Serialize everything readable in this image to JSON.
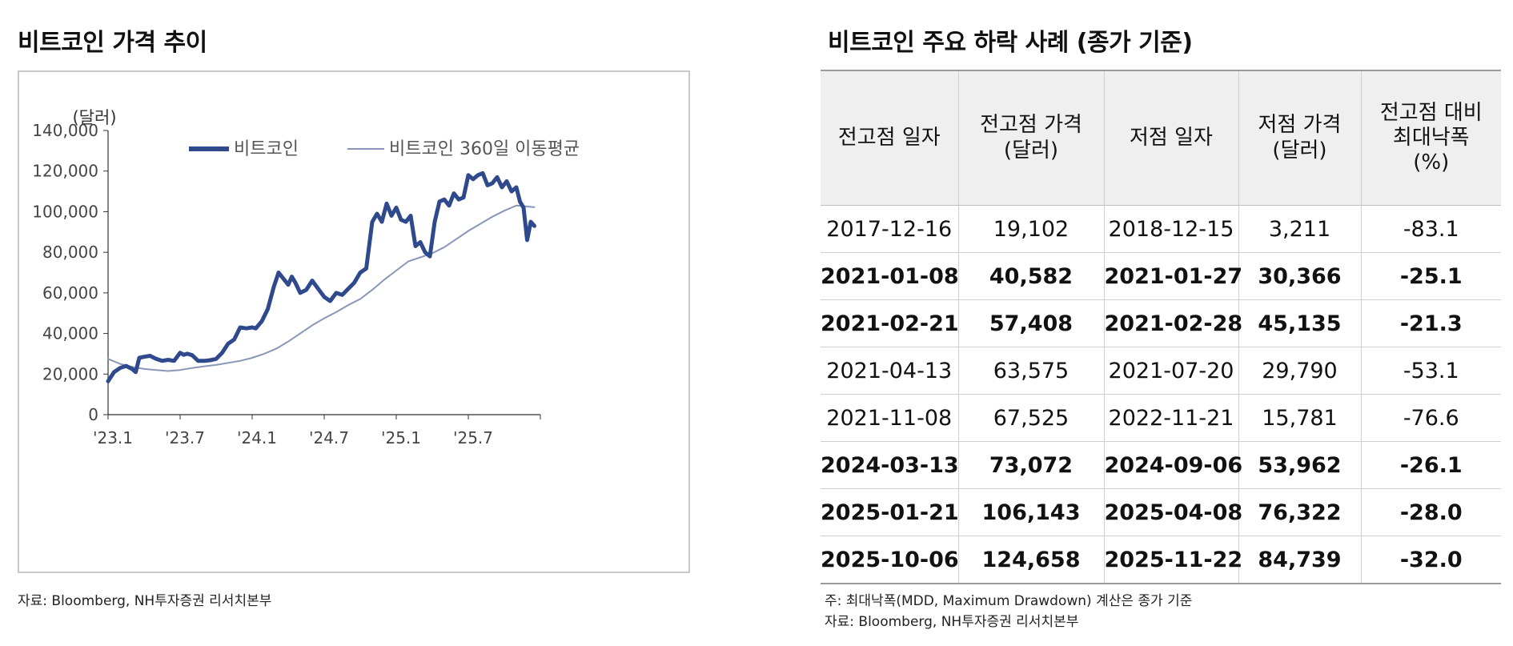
{
  "left": {
    "title": "비트코인 가격 추이",
    "source": "자료: Bloomberg, NH투자증권 리서치본부"
  },
  "right": {
    "title": "비트코인 주요 하락 사례 (종가 기준)",
    "note": "주: 최대낙폭(MDD, Maximum Drawdown) 계산은 종가 기준",
    "source": "자료: Bloomberg, NH투자증권 리서치본부"
  },
  "chart_data": {
    "type": "line",
    "unit_label": "(달러)",
    "ylim": [
      0,
      140000
    ],
    "yticks": [
      "0",
      "20,000",
      "40,000",
      "60,000",
      "80,000",
      "100,000",
      "120,000",
      "140,000"
    ],
    "xlim": [
      0,
      36
    ],
    "xticks": [
      {
        "label": "'23.1",
        "value": 0
      },
      {
        "label": "'23.7",
        "value": 6
      },
      {
        "label": "'24.1",
        "value": 12
      },
      {
        "label": "'24.7",
        "value": 18
      },
      {
        "label": "'25.1",
        "value": 24
      },
      {
        "label": "'25.7",
        "value": 30
      }
    ],
    "legend": [
      "비트코인",
      "비트코인 360일 이동평균"
    ],
    "series": [
      {
        "name": "비트코인",
        "color": "#2e4a8c",
        "x": [
          0,
          0.5,
          1,
          1.5,
          2,
          2.3,
          2.6,
          3,
          3.5,
          4,
          4.5,
          5,
          5.5,
          6,
          6.3,
          6.6,
          7,
          7.5,
          8,
          8.5,
          9,
          9.5,
          10,
          10.5,
          11,
          11.5,
          12,
          12.3,
          12.8,
          13.3,
          13.8,
          14.2,
          14.6,
          15,
          15.3,
          15.6,
          16,
          16.5,
          17,
          17.5,
          18,
          18.5,
          19,
          19.5,
          20,
          20.5,
          21,
          21.5,
          22,
          22.4,
          22.8,
          23.2,
          23.6,
          24,
          24.4,
          24.8,
          25.2,
          25.6,
          26,
          26.4,
          26.8,
          27.2,
          27.6,
          28,
          28.4,
          28.8,
          29.2,
          29.6,
          30,
          30.4,
          30.8,
          31.2,
          31.6,
          32,
          32.4,
          32.8,
          33.2,
          33.6,
          34,
          34.3,
          34.6,
          34.9,
          35.2,
          35.5
        ],
        "values": [
          16500,
          21000,
          23000,
          24000,
          22500,
          21000,
          28000,
          28500,
          29000,
          27500,
          26500,
          27000,
          26500,
          30500,
          29500,
          30000,
          29300,
          26500,
          26500,
          26800,
          27500,
          30500,
          35000,
          37000,
          43000,
          42500,
          43000,
          42500,
          46000,
          52000,
          63000,
          70000,
          67000,
          64000,
          68000,
          65000,
          60000,
          61500,
          66000,
          62000,
          58000,
          56000,
          60000,
          59000,
          62000,
          65000,
          70000,
          72000,
          95000,
          99000,
          95000,
          104000,
          98000,
          102000,
          96000,
          95000,
          98000,
          83000,
          85000,
          80000,
          78000,
          95000,
          105000,
          106000,
          103000,
          109000,
          106000,
          107000,
          118000,
          116000,
          118000,
          119000,
          113000,
          114000,
          117000,
          112000,
          115000,
          110000,
          112000,
          105000,
          102000,
          86000,
          95000,
          93000
        ]
      },
      {
        "name": "비트코인 360일 이동평균",
        "color": "#8896b8",
        "x": [
          0,
          1,
          2,
          3,
          4,
          5,
          6,
          7,
          8,
          9,
          10,
          11,
          12,
          13,
          14,
          15,
          16,
          17,
          18,
          19,
          20,
          21,
          22,
          23,
          24,
          25,
          26,
          27,
          28,
          29,
          30,
          31,
          32,
          33,
          34,
          34.5,
          35,
          35.5
        ],
        "values": [
          27500,
          25000,
          23500,
          22500,
          22000,
          21500,
          22000,
          23000,
          23800,
          24500,
          25500,
          26500,
          28000,
          30000,
          32500,
          36000,
          40000,
          44000,
          47500,
          50500,
          54000,
          57000,
          61500,
          66500,
          71000,
          75500,
          77500,
          79500,
          82500,
          86500,
          90500,
          94000,
          97500,
          100500,
          103000,
          102800,
          102500,
          102200
        ]
      }
    ]
  },
  "table": {
    "columns": [
      "전고점 일자",
      "전고점 가격\n(달러)",
      "저점 일자",
      "저점 가격\n(달러)",
      "전고점 대비\n최대낙폭\n(%)"
    ],
    "rows": [
      {
        "bold": false,
        "cells": [
          "2017-12-16",
          "19,102",
          "2018-12-15",
          "3,211",
          "-83.1"
        ]
      },
      {
        "bold": true,
        "cells": [
          "2021-01-08",
          "40,582",
          "2021-01-27",
          "30,366",
          "-25.1"
        ]
      },
      {
        "bold": true,
        "cells": [
          "2021-02-21",
          "57,408",
          "2021-02-28",
          "45,135",
          "-21.3"
        ]
      },
      {
        "bold": false,
        "cells": [
          "2021-04-13",
          "63,575",
          "2021-07-20",
          "29,790",
          "-53.1"
        ]
      },
      {
        "bold": false,
        "cells": [
          "2021-11-08",
          "67,525",
          "2022-11-21",
          "15,781",
          "-76.6"
        ]
      },
      {
        "bold": true,
        "cells": [
          "2024-03-13",
          "73,072",
          "2024-09-06",
          "53,962",
          "-26.1"
        ]
      },
      {
        "bold": true,
        "cells": [
          "2025-01-21",
          "106,143",
          "2025-04-08",
          "76,322",
          "-28.0"
        ]
      },
      {
        "bold": true,
        "cells": [
          "2025-10-06",
          "124,658",
          "2025-11-22",
          "84,739",
          "-32.0"
        ]
      }
    ]
  }
}
